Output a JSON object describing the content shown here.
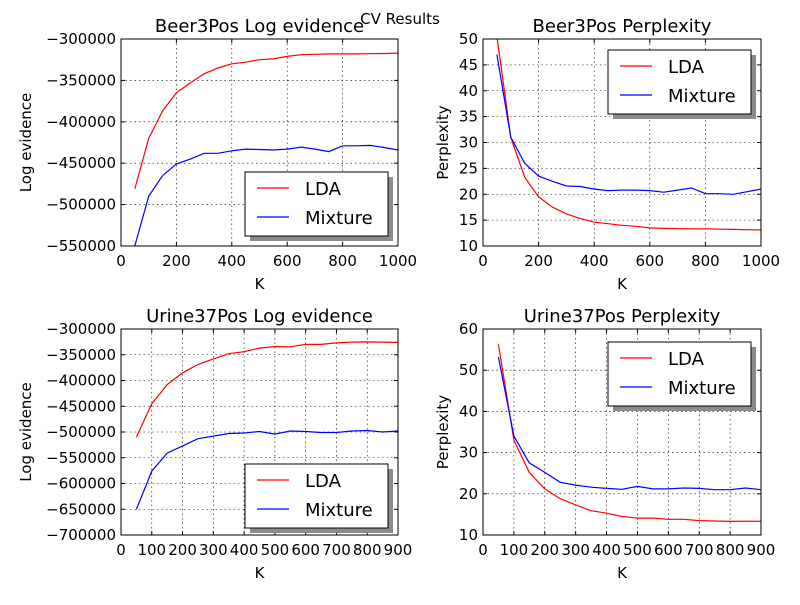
{
  "suptitle": "CV Results",
  "colors": {
    "LDA": "#ff0000",
    "Mixture": "#0000ff"
  },
  "chart_data": [
    {
      "type": "line",
      "title": "Beer3Pos Log evidence",
      "xlabel": "K",
      "ylabel": "Log evidence",
      "xlim": [
        0,
        1000
      ],
      "ylim": [
        -550000,
        -300000
      ],
      "xticks": [
        0,
        200,
        400,
        600,
        800,
        1000
      ],
      "yticks": [
        -550000,
        -500000,
        -450000,
        -400000,
        -350000,
        -300000
      ],
      "xtick_labels": [
        "0",
        "200",
        "400",
        "600",
        "800",
        "1000"
      ],
      "ytick_labels": [
        "−550000",
        "−500000",
        "−450000",
        "−400000",
        "−350000",
        "−300000"
      ],
      "grid": true,
      "legend": "lower-right",
      "x": [
        50,
        100,
        150,
        200,
        250,
        300,
        350,
        400,
        450,
        500,
        550,
        600,
        650,
        700,
        750,
        800,
        850,
        900,
        950,
        1000
      ],
      "series": [
        {
          "name": "LDA",
          "color": "#ff0000",
          "values": [
            -481000,
            -420000,
            -387000,
            -365000,
            -353000,
            -342000,
            -335000,
            -330000,
            -328000,
            -325000,
            -324000,
            -321000,
            -319000,
            -318500,
            -318000,
            -318000,
            -318000,
            -317800,
            -317500,
            -317000
          ]
        },
        {
          "name": "Mixture",
          "color": "#0000ff",
          "values": [
            -550000,
            -490000,
            -465000,
            -451000,
            -445000,
            -438000,
            -438000,
            -435000,
            -433000,
            -433500,
            -434000,
            -433000,
            -430500,
            -433000,
            -436000,
            -429000,
            -429000,
            -428500,
            -431000,
            -434000
          ]
        }
      ]
    },
    {
      "type": "line",
      "title": "Beer3Pos Perplexity",
      "xlabel": "K",
      "ylabel": "Perplexity",
      "xlim": [
        0,
        1000
      ],
      "ylim": [
        10,
        50
      ],
      "xticks": [
        0,
        200,
        400,
        600,
        800,
        1000
      ],
      "yticks": [
        10,
        15,
        20,
        25,
        30,
        35,
        40,
        45,
        50
      ],
      "xtick_labels": [
        "0",
        "200",
        "400",
        "600",
        "800",
        "1000"
      ],
      "ytick_labels": [
        "10",
        "15",
        "20",
        "25",
        "30",
        "35",
        "40",
        "45",
        "50"
      ],
      "grid": true,
      "legend": "upper-right",
      "x": [
        50,
        100,
        150,
        200,
        250,
        300,
        350,
        400,
        450,
        500,
        550,
        600,
        650,
        700,
        750,
        800,
        850,
        900,
        950,
        1000
      ],
      "series": [
        {
          "name": "LDA",
          "color": "#ff0000",
          "values": [
            50.5,
            31,
            23.3,
            19.5,
            17.5,
            16.2,
            15.3,
            14.6,
            14.3,
            14.0,
            13.8,
            13.5,
            13.4,
            13.35,
            13.3,
            13.3,
            13.25,
            13.2,
            13.15,
            13.1
          ]
        },
        {
          "name": "Mixture",
          "color": "#0000ff",
          "values": [
            47,
            31,
            26,
            23.5,
            22.5,
            21.6,
            21.5,
            21.0,
            20.7,
            20.8,
            20.8,
            20.7,
            20.4,
            20.8,
            21.2,
            20.1,
            20.1,
            20.0,
            20.5,
            21.0
          ]
        }
      ]
    },
    {
      "type": "line",
      "title": "Urine37Pos Log evidence",
      "xlabel": "K",
      "ylabel": "Log evidence",
      "xlim": [
        0,
        900
      ],
      "ylim": [
        -700000,
        -300000
      ],
      "xticks": [
        0,
        100,
        200,
        300,
        400,
        500,
        600,
        700,
        800,
        900
      ],
      "yticks": [
        -700000,
        -650000,
        -600000,
        -550000,
        -500000,
        -450000,
        -400000,
        -350000,
        -300000
      ],
      "xtick_labels": [
        "0",
        "100",
        "200",
        "300",
        "400",
        "500",
        "600",
        "700",
        "800",
        "900"
      ],
      "ytick_labels": [
        "−700000",
        "−650000",
        "−600000",
        "−550000",
        "−500000",
        "−450000",
        "−400000",
        "−350000",
        "−300000"
      ],
      "grid": true,
      "legend": "lower-right",
      "x": [
        50,
        100,
        150,
        200,
        250,
        300,
        350,
        400,
        450,
        500,
        550,
        600,
        650,
        700,
        750,
        800,
        850,
        900
      ],
      "series": [
        {
          "name": "LDA",
          "color": "#ff0000",
          "values": [
            -510000,
            -445000,
            -408000,
            -385000,
            -369000,
            -358000,
            -348000,
            -344000,
            -337000,
            -334000,
            -334500,
            -330000,
            -330000,
            -327000,
            -325500,
            -325000,
            -325500,
            -326000
          ]
        },
        {
          "name": "Mixture",
          "color": "#0000ff",
          "values": [
            -650000,
            -576000,
            -541000,
            -527000,
            -513000,
            -508000,
            -503000,
            -502000,
            -499000,
            -504000,
            -498000,
            -499000,
            -501000,
            -501000,
            -498000,
            -497000,
            -500000,
            -498000
          ]
        }
      ]
    },
    {
      "type": "line",
      "title": "Urine37Pos Perplexity",
      "xlabel": "K",
      "ylabel": "Perplexity",
      "xlim": [
        0,
        900
      ],
      "ylim": [
        10,
        60
      ],
      "xticks": [
        0,
        100,
        200,
        300,
        400,
        500,
        600,
        700,
        800,
        900
      ],
      "yticks": [
        10,
        20,
        30,
        40,
        50,
        60
      ],
      "xtick_labels": [
        "0",
        "100",
        "200",
        "300",
        "400",
        "500",
        "600",
        "700",
        "800",
        "900"
      ],
      "ytick_labels": [
        "10",
        "20",
        "30",
        "40",
        "50",
        "60"
      ],
      "grid": true,
      "legend": "upper-right",
      "x": [
        50,
        100,
        150,
        200,
        250,
        300,
        350,
        400,
        450,
        500,
        550,
        600,
        650,
        700,
        750,
        800,
        850,
        900
      ],
      "series": [
        {
          "name": "LDA",
          "color": "#ff0000",
          "values": [
            56.3,
            33,
            25.2,
            21.2,
            18.8,
            17.3,
            15.9,
            15.3,
            14.5,
            14.1,
            14.1,
            13.8,
            13.8,
            13.5,
            13.4,
            13.3,
            13.35,
            13.3
          ]
        },
        {
          "name": "Mixture",
          "color": "#0000ff",
          "values": [
            53.2,
            34,
            27.5,
            25.2,
            22.8,
            22.1,
            21.6,
            21.3,
            21.1,
            21.8,
            21.2,
            21.2,
            21.4,
            21.3,
            21.0,
            21.0,
            21.4,
            21.0
          ]
        }
      ]
    }
  ]
}
